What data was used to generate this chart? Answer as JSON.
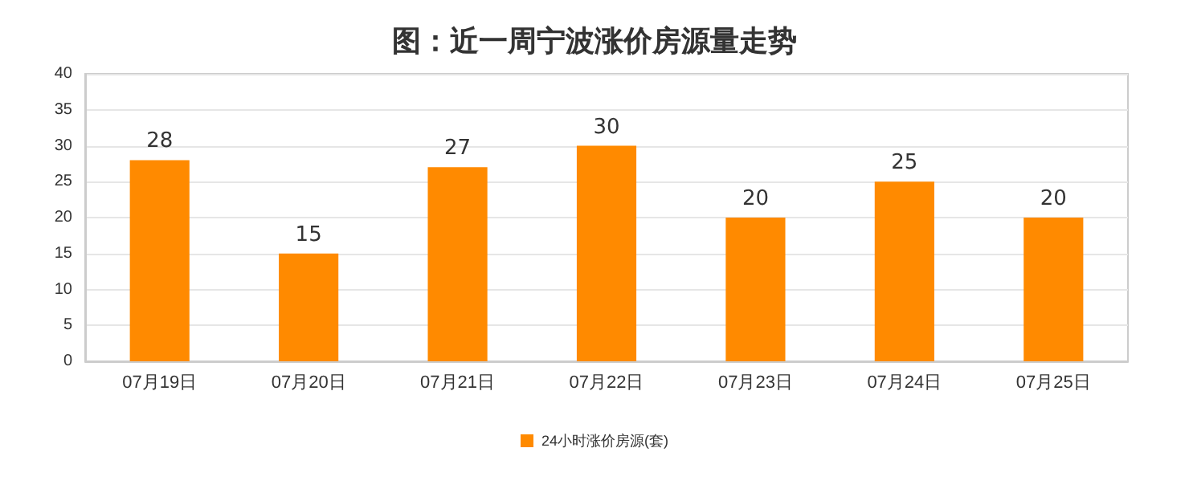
{
  "chart_data": {
    "type": "bar",
    "title": "图：近一周宁波涨价房源量走势",
    "categories": [
      "07月19日",
      "07月20日",
      "07月21日",
      "07月22日",
      "07月23日",
      "07月24日",
      "07月25日"
    ],
    "series": [
      {
        "name": "24小时涨价房源(套)",
        "color": "#ff8a00",
        "values": [
          28,
          15,
          27,
          30,
          20,
          25,
          20
        ]
      }
    ],
    "ylim": [
      0,
      40
    ],
    "yticks": [
      0,
      5,
      10,
      15,
      20,
      25,
      30,
      35,
      40
    ],
    "grid": "y",
    "legend": "bottom",
    "data_labels": true
  }
}
